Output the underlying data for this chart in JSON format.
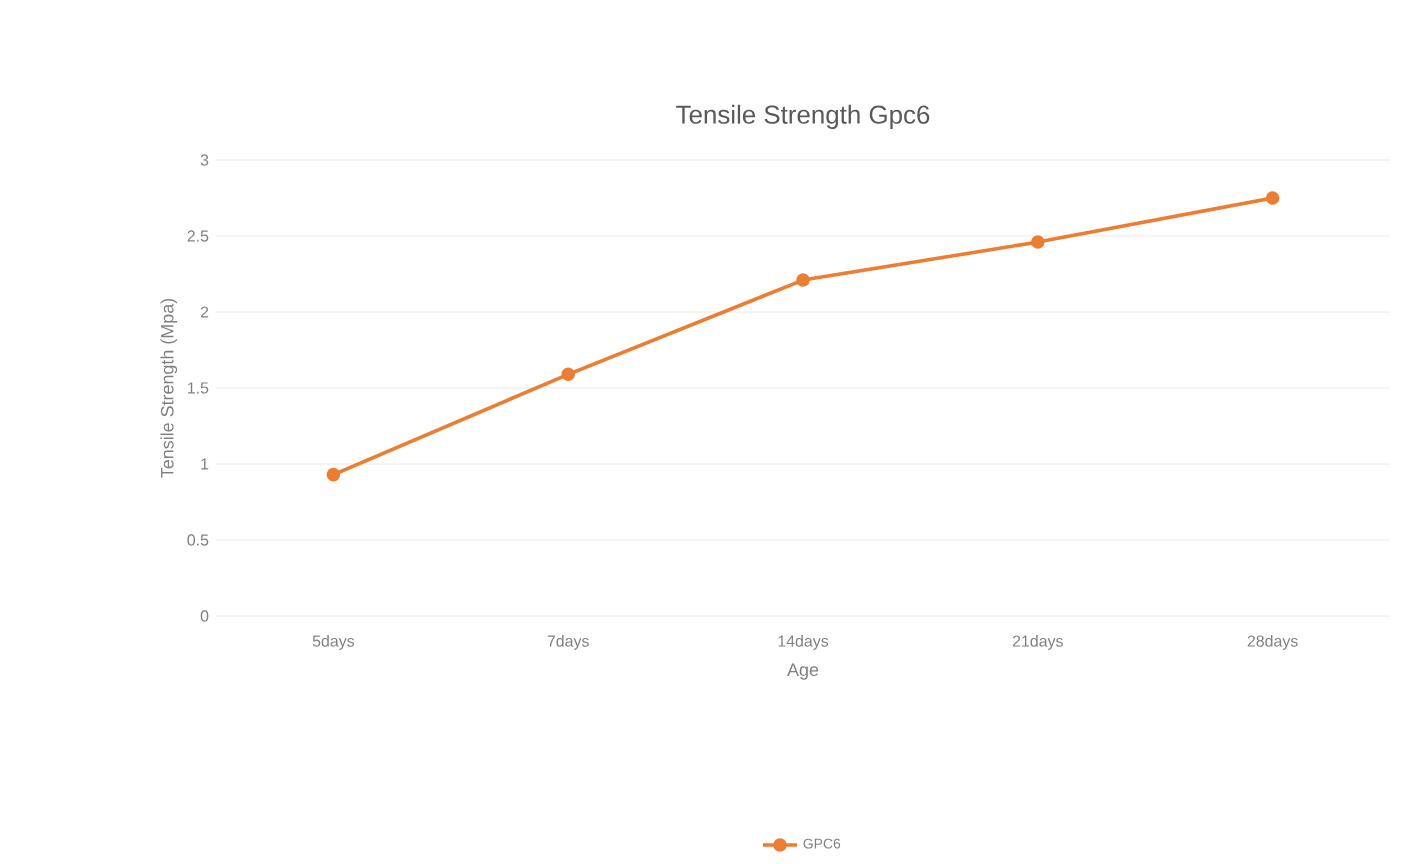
{
  "chart_data": {
    "type": "line",
    "title": "Tensile Strength Gpc6",
    "xlabel": "Age",
    "ylabel": "Tensile Strength (Mpa)",
    "categories": [
      "5days",
      "7days",
      "14days",
      "21days",
      "28days"
    ],
    "series": [
      {
        "name": "GPC6",
        "color": "#ed7d31",
        "values": [
          0.93,
          1.59,
          2.21,
          2.46,
          2.75
        ]
      }
    ],
    "ylim": [
      0,
      3
    ],
    "yticks": [
      0,
      0.5,
      1,
      1.5,
      2,
      2.5,
      3
    ],
    "grid": "y",
    "legend": "bottom",
    "marker": "circle",
    "line_style": "solid"
  }
}
